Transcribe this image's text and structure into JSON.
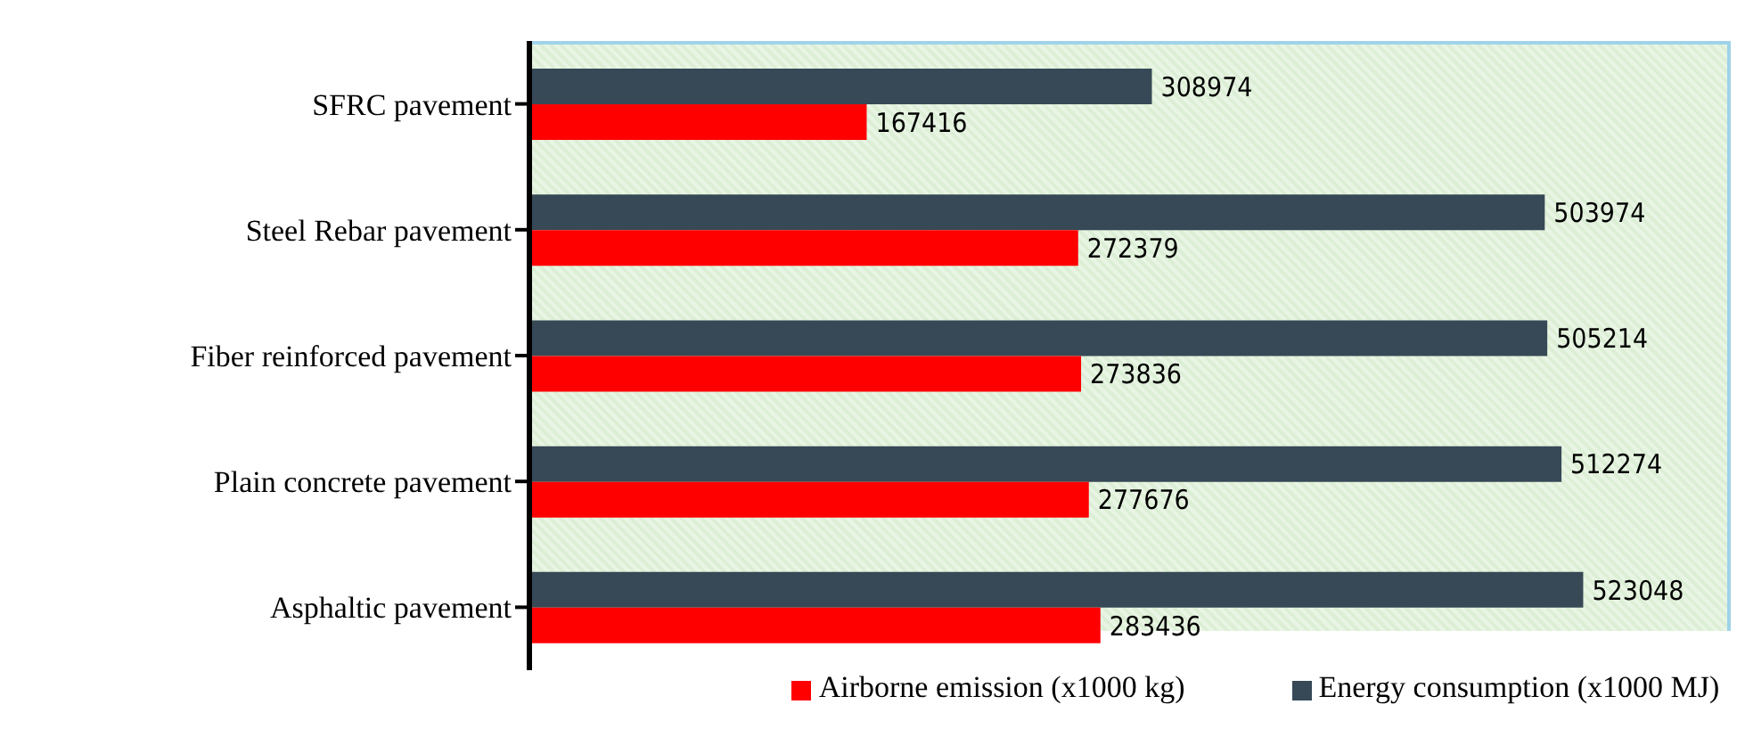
{
  "chart_data": {
    "type": "bar",
    "orientation": "horizontal",
    "categories": [
      "SFRC pavement",
      "Steel Rebar pavement ",
      "Fiber reinforced pavement",
      "Plain concrete pavement",
      "Asphaltic pavement"
    ],
    "series": [
      {
        "name": "Energy consumption (x1000 MJ)",
        "color": "#374856",
        "values": [
          308974,
          503974,
          505214,
          512274,
          523048
        ]
      },
      {
        "name": "Airborne emission (x1000 kg)",
        "color": "#ff0000",
        "values": [
          167416,
          272379,
          273836,
          277676,
          283436
        ]
      }
    ],
    "data_labels": true,
    "legend": "bottom",
    "grid": false
  }
}
